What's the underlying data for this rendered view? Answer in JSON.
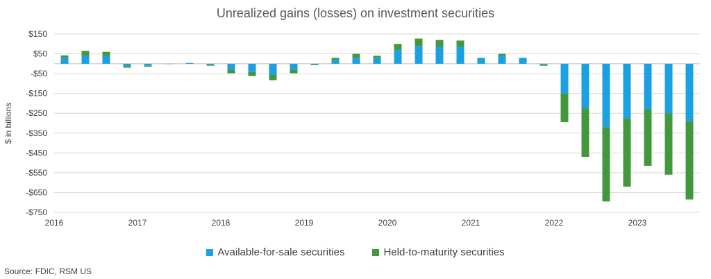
{
  "chart_data": {
    "type": "bar",
    "stacked": true,
    "title": "Unrealized gains (losses) on investment securities",
    "xlabel": "",
    "ylabel": "$ in billions",
    "ylim": [
      -750,
      150
    ],
    "y_ticks": [
      150,
      50,
      -50,
      -150,
      -250,
      -350,
      -450,
      -550,
      -650,
      -750
    ],
    "y_tick_labels": [
      "$150",
      "$50",
      "-$50",
      "-$150",
      "-$250",
      "-$350",
      "-$450",
      "-$550",
      "-$650",
      "-$750"
    ],
    "x_tick_labels": [
      "2016",
      "2017",
      "2018",
      "2019",
      "2020",
      "2021",
      "2022",
      "2023"
    ],
    "grid": true,
    "legend_position": "bottom",
    "categories": [
      "2016Q1",
      "2016Q2",
      "2016Q3",
      "2016Q4",
      "2017Q1",
      "2017Q2",
      "2017Q3",
      "2017Q4",
      "2018Q1",
      "2018Q2",
      "2018Q3",
      "2018Q4",
      "2019Q1",
      "2019Q2",
      "2019Q3",
      "2019Q4",
      "2020Q1",
      "2020Q2",
      "2020Q3",
      "2020Q4",
      "2021Q1",
      "2021Q2",
      "2021Q3",
      "2021Q4",
      "2022Q1",
      "2022Q2",
      "2022Q3",
      "2022Q4",
      "2023Q1",
      "2023Q2",
      "2023Q3"
    ],
    "series": [
      {
        "name": "Available-for-sale securities",
        "color": "#1BA1E2",
        "values": [
          30,
          40,
          40,
          -12,
          -10,
          -1,
          4,
          -7,
          -30,
          -42,
          -55,
          -30,
          -4,
          18,
          30,
          30,
          70,
          90,
          85,
          85,
          30,
          40,
          30,
          -3,
          -150,
          -225,
          -320,
          -275,
          -230,
          -250,
          -290
        ]
      },
      {
        "name": "Held-to-maturity securities",
        "color": "#43983E",
        "values": [
          12,
          25,
          20,
          -8,
          -5,
          0,
          0,
          -3,
          -18,
          -20,
          -28,
          -18,
          -3,
          12,
          20,
          10,
          30,
          37,
          35,
          32,
          0,
          10,
          0,
          -7,
          -145,
          -245,
          -375,
          -345,
          -285,
          -310,
          -395
        ]
      }
    ]
  },
  "source": "Source: FDIC, RSM US"
}
